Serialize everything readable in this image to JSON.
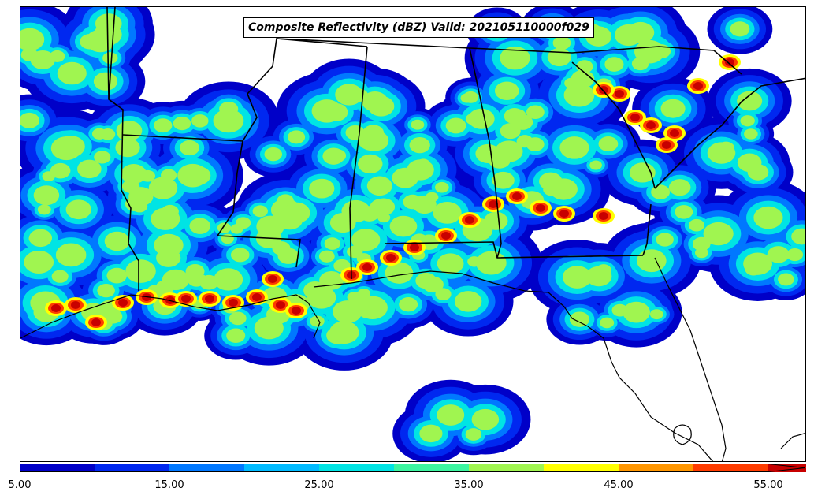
{
  "title": "Composite Reflectivity (dBZ) Valid: 202105110000f029",
  "colorbar": {
    "levels": [
      5,
      10,
      15,
      20,
      25,
      30,
      35,
      40,
      45,
      50,
      55
    ],
    "colors": [
      "#0000c8",
      "#0028f0",
      "#0078ff",
      "#00bbff",
      "#00e4e4",
      "#3cf5a0",
      "#a0f550",
      "#ffff00",
      "#ff9600",
      "#ff3c00",
      "#c80000"
    ],
    "extend": "max",
    "tick_labels": [
      "5.00",
      "15.00",
      "25.00",
      "35.00",
      "45.00",
      "55.00"
    ]
  },
  "map": {
    "region": "Southeast United States / Gulf of Mexico",
    "background_color": "#ffffff",
    "coastline_color": "#000000",
    "state_border_color": "#000000"
  }
}
